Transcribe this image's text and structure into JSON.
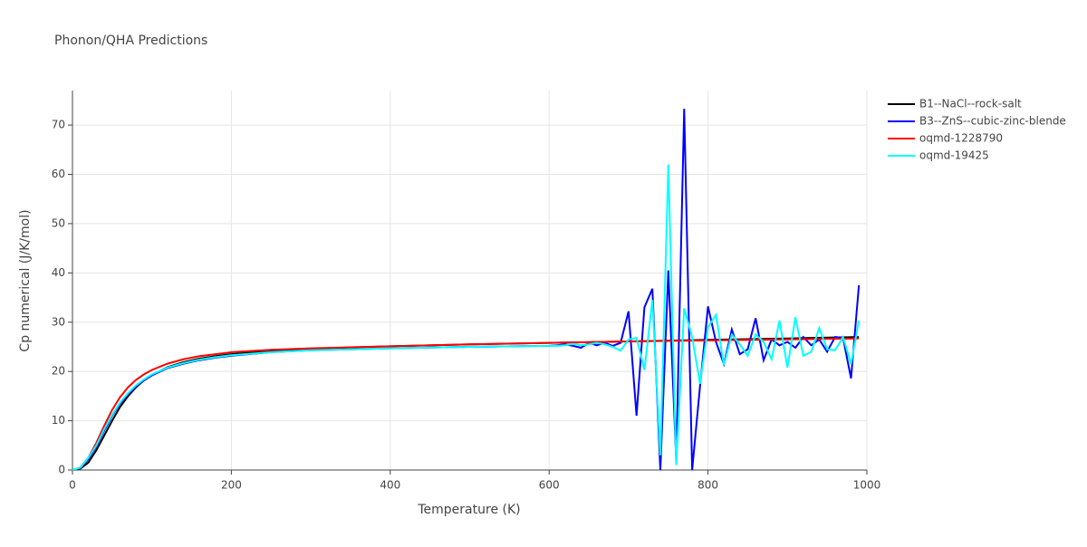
{
  "chart_data": {
    "type": "line",
    "title": "Phonon/QHA Predictions",
    "x_label": "Temperature (K)",
    "y_label": "Cp numerical (J/K/mol)",
    "xlim": [
      0,
      1000
    ],
    "ylim": [
      0,
      77
    ],
    "xticks": [
      0,
      200,
      400,
      600,
      800,
      1000
    ],
    "yticks": [
      0,
      10,
      20,
      30,
      40,
      50,
      60,
      70
    ],
    "grid": true,
    "legend": "right",
    "series": [
      {
        "name": "B1--NaCl--rock-salt",
        "color": "#000000",
        "x": [
          0,
          10,
          20,
          30,
          40,
          50,
          60,
          70,
          80,
          90,
          100,
          120,
          140,
          160,
          180,
          200,
          250,
          300,
          400,
          500,
          600,
          700,
          800,
          900,
          990
        ],
        "values": [
          0,
          0.3,
          1.5,
          4,
          7,
          10,
          12.8,
          15,
          16.8,
          18.2,
          19.3,
          20.9,
          21.9,
          22.6,
          23.1,
          23.5,
          24.2,
          24.6,
          25.1,
          25.5,
          25.8,
          26.1,
          26.4,
          26.7,
          27.0
        ]
      },
      {
        "name": "B3--ZnS--cubic-zinc-blende",
        "color": "#0000ff",
        "x": [
          0,
          10,
          20,
          30,
          40,
          50,
          60,
          70,
          80,
          90,
          100,
          120,
          140,
          160,
          180,
          200,
          250,
          300,
          400,
          500,
          600,
          610,
          620,
          630,
          640,
          650,
          660,
          670,
          680,
          690,
          700,
          710,
          720,
          730,
          740,
          750,
          760,
          770,
          780,
          790,
          800,
          810,
          820,
          830,
          840,
          850,
          860,
          870,
          880,
          890,
          900,
          910,
          920,
          930,
          940,
          950,
          960,
          970,
          980,
          990
        ],
        "values": [
          0,
          0.4,
          2.2,
          4.8,
          8,
          11,
          13.5,
          15.4,
          17,
          18.2,
          19.2,
          20.7,
          21.6,
          22.3,
          22.8,
          23.2,
          23.9,
          24.3,
          24.7,
          25,
          25.2,
          25.3,
          25.5,
          25.2,
          24.8,
          25.8,
          25.3,
          25.8,
          25.2,
          25.8,
          32.2,
          11,
          33,
          36.8,
          0,
          40.5,
          2,
          73.3,
          0,
          17,
          33.2,
          26,
          21.5,
          28.5,
          23.5,
          24.5,
          30.8,
          22.3,
          26.5,
          25.3,
          26,
          24.8,
          27,
          25.3,
          26.5,
          24,
          27,
          26.8,
          18.6,
          37.5
        ]
      },
      {
        "name": "oqmd-1228790",
        "color": "#ff0000",
        "x": [
          0,
          10,
          20,
          30,
          40,
          50,
          60,
          70,
          80,
          90,
          100,
          120,
          140,
          160,
          180,
          200,
          250,
          300,
          400,
          500,
          600,
          700,
          800,
          900,
          990
        ],
        "values": [
          0,
          0.5,
          2.5,
          5.5,
          9,
          12.2,
          14.8,
          16.8,
          18.3,
          19.4,
          20.3,
          21.6,
          22.5,
          23.1,
          23.5,
          23.9,
          24.4,
          24.7,
          25.1,
          25.5,
          25.8,
          26.1,
          26.3,
          26.5,
          26.7
        ]
      },
      {
        "name": "oqmd-19425",
        "color": "#00ffff",
        "x": [
          0,
          10,
          20,
          30,
          40,
          50,
          60,
          70,
          80,
          90,
          100,
          120,
          140,
          160,
          180,
          200,
          250,
          300,
          400,
          500,
          600,
          610,
          620,
          630,
          640,
          650,
          660,
          670,
          680,
          690,
          700,
          710,
          720,
          730,
          740,
          750,
          760,
          770,
          780,
          790,
          800,
          810,
          820,
          830,
          840,
          850,
          860,
          870,
          880,
          890,
          900,
          910,
          920,
          930,
          940,
          950,
          960,
          970,
          980,
          990
        ],
        "values": [
          0,
          0.5,
          2.5,
          5,
          8.3,
          11.2,
          13.7,
          15.6,
          17.2,
          18.4,
          19.4,
          20.8,
          21.7,
          22.4,
          22.9,
          23.3,
          23.9,
          24.3,
          24.7,
          25,
          25.2,
          25.2,
          25.3,
          25.6,
          25.3,
          25.5,
          25.8,
          25.5,
          25,
          24.2,
          26.5,
          26.8,
          20.3,
          34.5,
          3,
          62,
          1,
          32.8,
          27,
          17.5,
          29,
          31.5,
          21.3,
          27.5,
          25.5,
          23.2,
          27.5,
          26,
          22.5,
          30.3,
          20.8,
          31,
          23.2,
          24,
          28.8,
          24.5,
          24.3,
          27,
          21.5,
          30.3
        ]
      }
    ]
  }
}
